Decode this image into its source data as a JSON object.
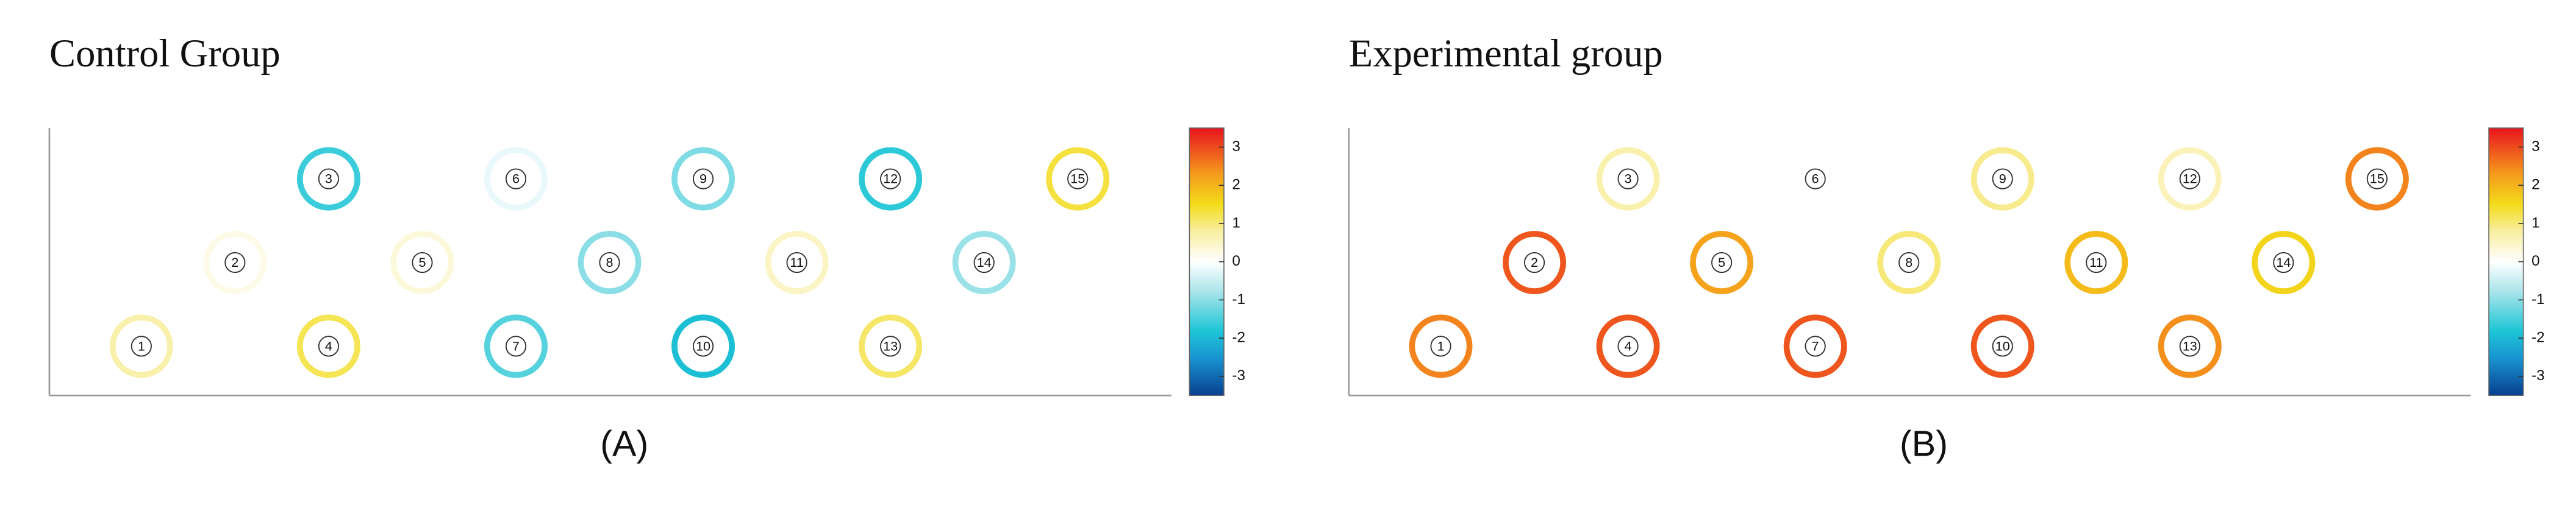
{
  "chart_data": [
    {
      "type": "channel-map",
      "title": "Control Group",
      "label": "(A)",
      "categories": [
        "1",
        "2",
        "3",
        "4",
        "5",
        "6",
        "7",
        "8",
        "9",
        "10",
        "11",
        "12",
        "13",
        "14",
        "15"
      ],
      "values": [
        0.7,
        0.2,
        -1.6,
        1.2,
        0.3,
        -0.2,
        -1.4,
        -1.0,
        -1.1,
        -1.9,
        0.5,
        -1.7,
        1.1,
        -0.9,
        1.3
      ],
      "clim": [
        -3.5,
        3.5
      ],
      "cticks": [
        3,
        2,
        1,
        0,
        -1,
        -2,
        -3
      ],
      "colormap": [
        [
          -3.5,
          "#08408f"
        ],
        [
          -2.5,
          "#1996d2"
        ],
        [
          -1.8,
          "#1ec6d6"
        ],
        [
          -0.8,
          "#a8e4ea"
        ],
        [
          0,
          "#ffffff"
        ],
        [
          0.8,
          "#f8eea0"
        ],
        [
          1.5,
          "#f2dc1a"
        ],
        [
          2.3,
          "#f59a1c"
        ],
        [
          3.5,
          "#e8121e"
        ]
      ]
    },
    {
      "type": "channel-map",
      "title": "Experimental group",
      "label": "(B)",
      "categories": [
        "1",
        "2",
        "3",
        "4",
        "5",
        "6",
        "7",
        "8",
        "9",
        "10",
        "11",
        "12",
        "13",
        "14",
        "15"
      ],
      "values": [
        2.5,
        2.9,
        0.7,
        2.9,
        2.2,
        0,
        2.9,
        1.0,
        0.9,
        2.9,
        1.9,
        0.6,
        2.4,
        1.6,
        2.5
      ],
      "clim": [
        -3.5,
        3.5
      ],
      "cticks": [
        3,
        2,
        1,
        0,
        -1,
        -2,
        -3
      ],
      "colormap": [
        [
          -3.5,
          "#08408f"
        ],
        [
          -2.5,
          "#1996d2"
        ],
        [
          -1.8,
          "#1ec6d6"
        ],
        [
          -0.8,
          "#a8e4ea"
        ],
        [
          0,
          "#ffffff"
        ],
        [
          0.8,
          "#f8eea0"
        ],
        [
          1.5,
          "#f2dc1a"
        ],
        [
          2.3,
          "#f59a1c"
        ],
        [
          3.5,
          "#e8121e"
        ]
      ]
    }
  ]
}
